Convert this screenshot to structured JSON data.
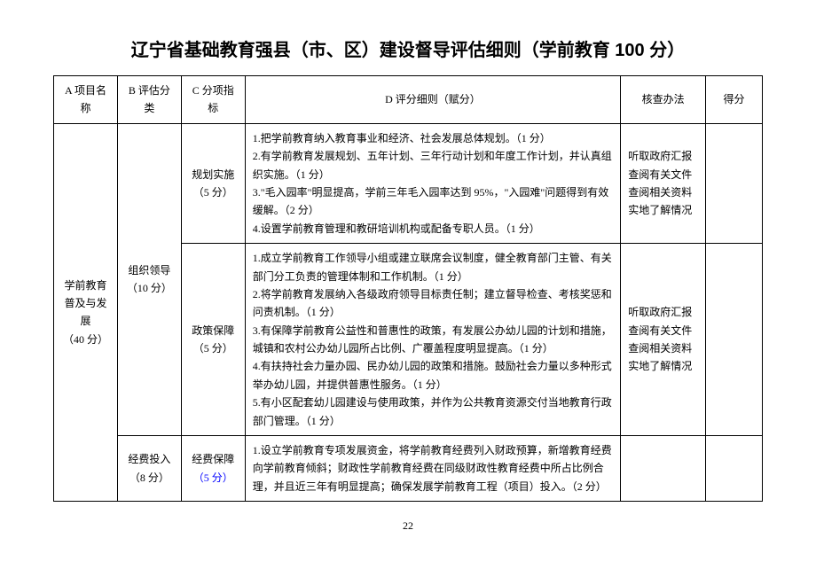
{
  "title": "辽宁省基础教育强县（市、区）建设督导评估细则（学前教育 100 分）",
  "headers": {
    "a": "A 项目名称",
    "b": "B 评估分类",
    "c": "C 分项指标",
    "d": "D 评分细则（赋分）",
    "e": "核查办法",
    "f": "得分"
  },
  "col_a": {
    "name": "学前教育\n普及与发展\n（40 分）"
  },
  "col_b": {
    "b1": "组织领导\n（10 分）",
    "b2": "经费投入\n（8 分）"
  },
  "col_c": {
    "c1": "规划实施\n（5 分）",
    "c2": "政策保障\n（5 分）",
    "c3_line1": "经费保障",
    "c3_line2": "（5 分）"
  },
  "col_d": {
    "d1": "1.把学前教育纳入教育事业和经济、社会发展总体规划。（1 分）\n2.有学前教育发展规划、五年计划、三年行动计划和年度工作计划，并认真组织实施。（1 分）\n3.\"毛入园率\"明显提高，学前三年毛入园率达到 95%，\"入园难\"问题得到有效缓解。（2 分）\n4.设置学前教育管理和教研培训机构或配备专职人员。（1 分）",
    "d2": "1.成立学前教育工作领导小组或建立联席会议制度，健全教育部门主管、有关部门分工负责的管理体制和工作机制。（1 分）\n2.将学前教育发展纳入各级政府领导目标责任制；建立督导检查、考核奖惩和问责机制。（1 分）\n3.有保障学前教育公益性和普惠性的政策，有发展公办幼儿园的计划和措施，城镇和农村公办幼儿园所占比例、广覆盖程度明显提高。（1 分）\n4.有扶持社会力量办园、民办幼儿园的政策和措施。鼓励社会力量以多种形式举办幼儿园，并提供普惠性服务。（1 分）\n5.有小区配套幼儿园建设与使用政策，并作为公共教育资源交付当地教育行政部门管理。（1 分）",
    "d3": "1.设立学前教育专项发展资金，将学前教育经费列入财政预算，新增教育经费向学前教育倾斜；财政性学前教育经费在同级财政性教育经费中所占比例合理，并且近三年有明显提高；确保发展学前教育工程（项目）投入。（2 分）"
  },
  "col_e": {
    "e1": "听取政府汇报\n查阅有关文件\n查阅相关资料\n实地了解情况",
    "e2": "听取政府汇报\n查阅有关文件\n查阅相关资料\n实地了解情况"
  },
  "page_number": "22"
}
